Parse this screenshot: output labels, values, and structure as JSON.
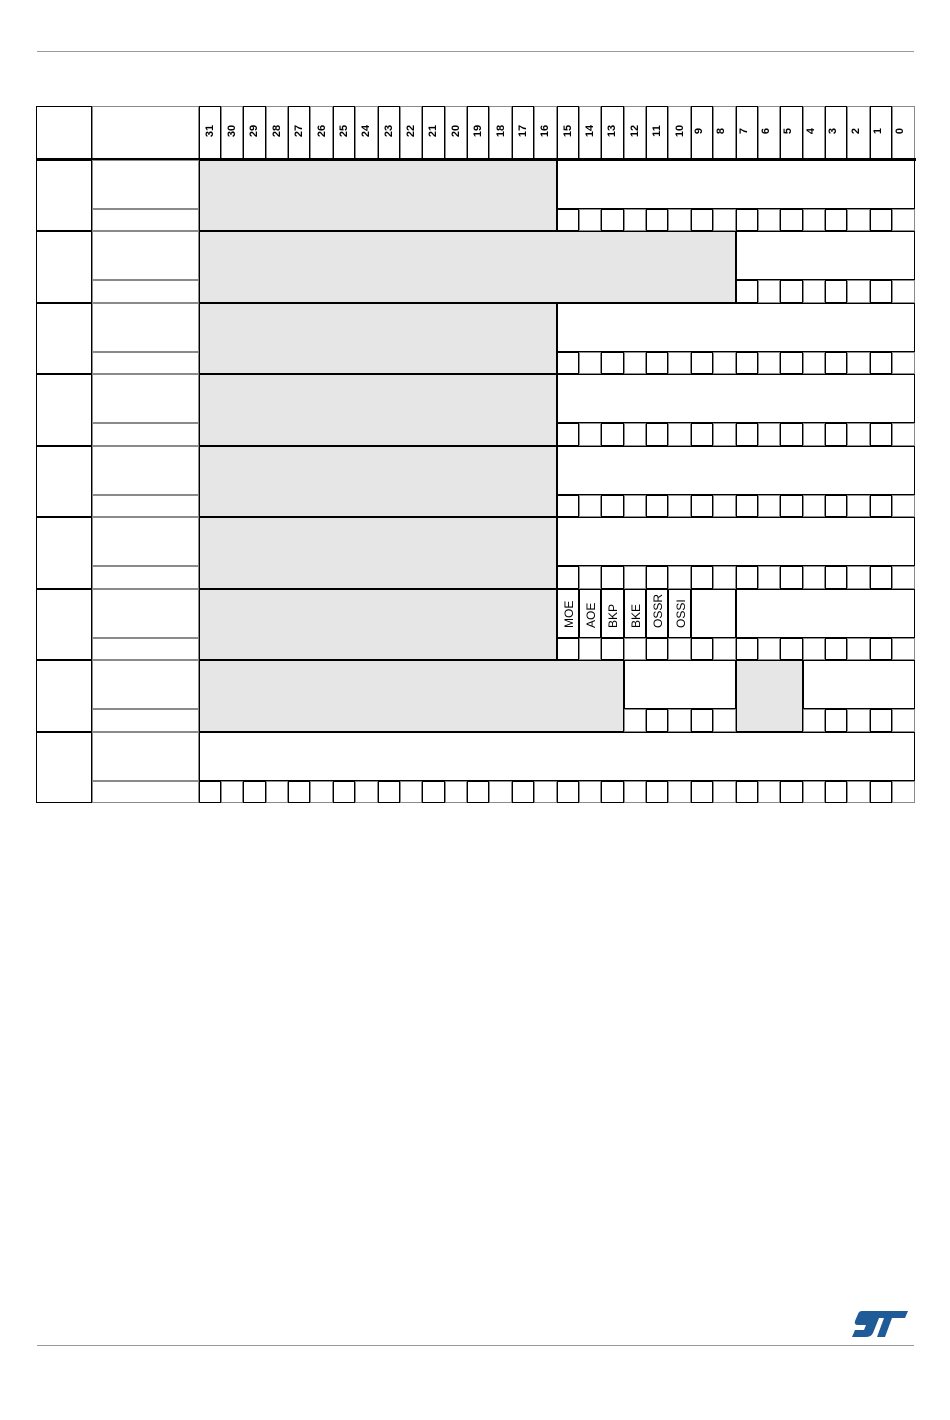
{
  "table": {
    "bit_numbers": [
      31,
      30,
      29,
      28,
      27,
      26,
      25,
      24,
      23,
      22,
      21,
      20,
      19,
      18,
      17,
      16,
      15,
      14,
      13,
      12,
      11,
      10,
      9,
      8,
      7,
      6,
      5,
      4,
      3,
      2,
      1,
      0
    ],
    "rows": [
      {
        "reserved": [
          [
            31,
            16
          ]
        ],
        "fields": [
          {
            "bits": [
              15,
              0
            ],
            "label": ""
          }
        ],
        "reset_bits": [
          15,
          0
        ]
      },
      {
        "reserved": [
          [
            31,
            8
          ]
        ],
        "fields": [
          {
            "bits": [
              7,
              0
            ],
            "label": ""
          }
        ],
        "reset_bits": [
          7,
          0
        ]
      },
      {
        "reserved": [
          [
            31,
            16
          ]
        ],
        "fields": [
          {
            "bits": [
              15,
              0
            ],
            "label": ""
          }
        ],
        "reset_bits": [
          15,
          0
        ]
      },
      {
        "reserved": [
          [
            31,
            16
          ]
        ],
        "fields": [
          {
            "bits": [
              15,
              0
            ],
            "label": ""
          }
        ],
        "reset_bits": [
          15,
          0
        ]
      },
      {
        "reserved": [
          [
            31,
            16
          ]
        ],
        "fields": [
          {
            "bits": [
              15,
              0
            ],
            "label": ""
          }
        ],
        "reset_bits": [
          15,
          0
        ]
      },
      {
        "reserved": [
          [
            31,
            16
          ]
        ],
        "fields": [
          {
            "bits": [
              15,
              0
            ],
            "label": ""
          }
        ],
        "reset_bits": [
          15,
          0
        ]
      },
      {
        "reserved": [
          [
            31,
            16
          ]
        ],
        "fields": [
          {
            "bits": [
              15,
              15
            ],
            "label": "MOE"
          },
          {
            "bits": [
              14,
              14
            ],
            "label": "AOE"
          },
          {
            "bits": [
              13,
              13
            ],
            "label": "BKP"
          },
          {
            "bits": [
              12,
              12
            ],
            "label": "BKE"
          },
          {
            "bits": [
              11,
              11
            ],
            "label": "OSSR"
          },
          {
            "bits": [
              10,
              10
            ],
            "label": "OSSI"
          },
          {
            "bits": [
              9,
              8
            ],
            "label": ""
          },
          {
            "bits": [
              7,
              0
            ],
            "label": ""
          }
        ],
        "reset_bits": [
          15,
          0
        ]
      },
      {
        "reserved": [
          [
            31,
            13
          ],
          [
            7,
            5
          ]
        ],
        "fields": [
          {
            "bits": [
              12,
              8
            ],
            "label": ""
          },
          {
            "bits": [
              4,
              0
            ],
            "label": ""
          }
        ],
        "reset_bits": [
          [
            12,
            8
          ],
          [
            4,
            0
          ]
        ]
      },
      {
        "reserved": [],
        "fields": [
          {
            "bits": [
              31,
              0
            ],
            "label": ""
          }
        ],
        "reset_bits": [
          31,
          0
        ]
      }
    ]
  },
  "colors": {
    "reserved_fill": "#e6e6e6",
    "logo_blue": "#1f5b96"
  },
  "logo": {
    "text": "ST"
  }
}
